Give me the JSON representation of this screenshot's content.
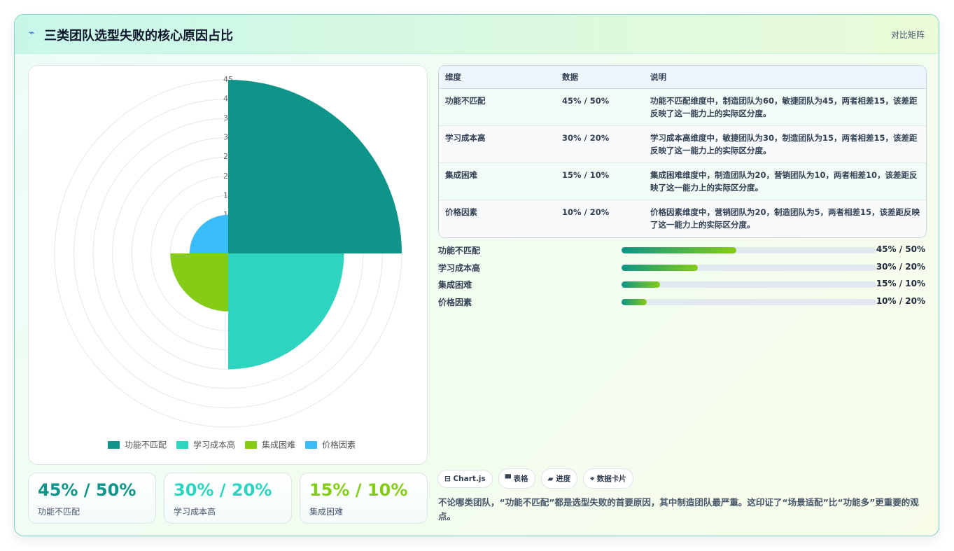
{
  "header": {
    "icon": "⌁",
    "title": "三类团队选型失败的核心原因占比",
    "tag": "对比矩阵"
  },
  "chart_data": {
    "type": "polarArea",
    "categories": [
      "功能不匹配",
      "学习成本高",
      "集成困难",
      "价格因素"
    ],
    "values": [
      45,
      30,
      15,
      10
    ],
    "colors": [
      "#0e9488",
      "#2dd4bf",
      "#84cc16",
      "#38bdf8"
    ],
    "ylim": [
      0,
      45
    ],
    "yticks": [
      5,
      10,
      15,
      20,
      25,
      30,
      35,
      40,
      45
    ],
    "grid": true,
    "legend": "bottom"
  },
  "table": {
    "header": [
      "维度",
      "数据",
      "说明"
    ],
    "rows": [
      [
        "功能不匹配",
        "45% / 50%",
        "功能不匹配维度中，制造团队为60，敏捷团队为45，两者相差15，该差距反映了这一能力上的实际区分度。"
      ],
      [
        "学习成本高",
        "30% / 20%",
        "学习成本高维度中，敏捷团队为30，制造团队为15，两者相差15，该差距反映了这一能力上的实际区分度。"
      ],
      [
        "集成困难",
        "15% / 10%",
        "集成困难维度中，制造团队为20，营销团队为10，两者相差10，该差距反映了这一能力上的实际区分度。"
      ],
      [
        "价格因素",
        "10% / 20%",
        "价格因素维度中，营销团队为20，制造团队为5，两者相差15，该差距反映了这一能力上的实际区分度。"
      ]
    ]
  },
  "progress": [
    {
      "label": "功能不匹配",
      "value": 45,
      "value_label": "45% / 50%"
    },
    {
      "label": "学习成本高",
      "value": 30,
      "value_label": "30% / 20%"
    },
    {
      "label": "集成困难",
      "value": 15,
      "value_label": "15% / 10%"
    },
    {
      "label": "价格因素",
      "value": 10,
      "value_label": "10% / 20%"
    }
  ],
  "cards": [
    {
      "value": "45% / 50%",
      "label": "功能不匹配",
      "color": "#0e9488"
    },
    {
      "value": "30% / 20%",
      "label": "学习成本高",
      "color": "#2dd4bf"
    },
    {
      "value": "15% / 10%",
      "label": "集成困难",
      "color": "#84cc16"
    }
  ],
  "tags": [
    "⊟ Chart.js",
    "▀ 表格",
    "▰ 进度",
    "⌖ 数据卡片"
  ],
  "summary": "不论哪类团队，“功能不匹配”都是选型失败的首要原因，其中制造团队最严重。这印证了“场景适配”比“功能多”更重要的观点。"
}
